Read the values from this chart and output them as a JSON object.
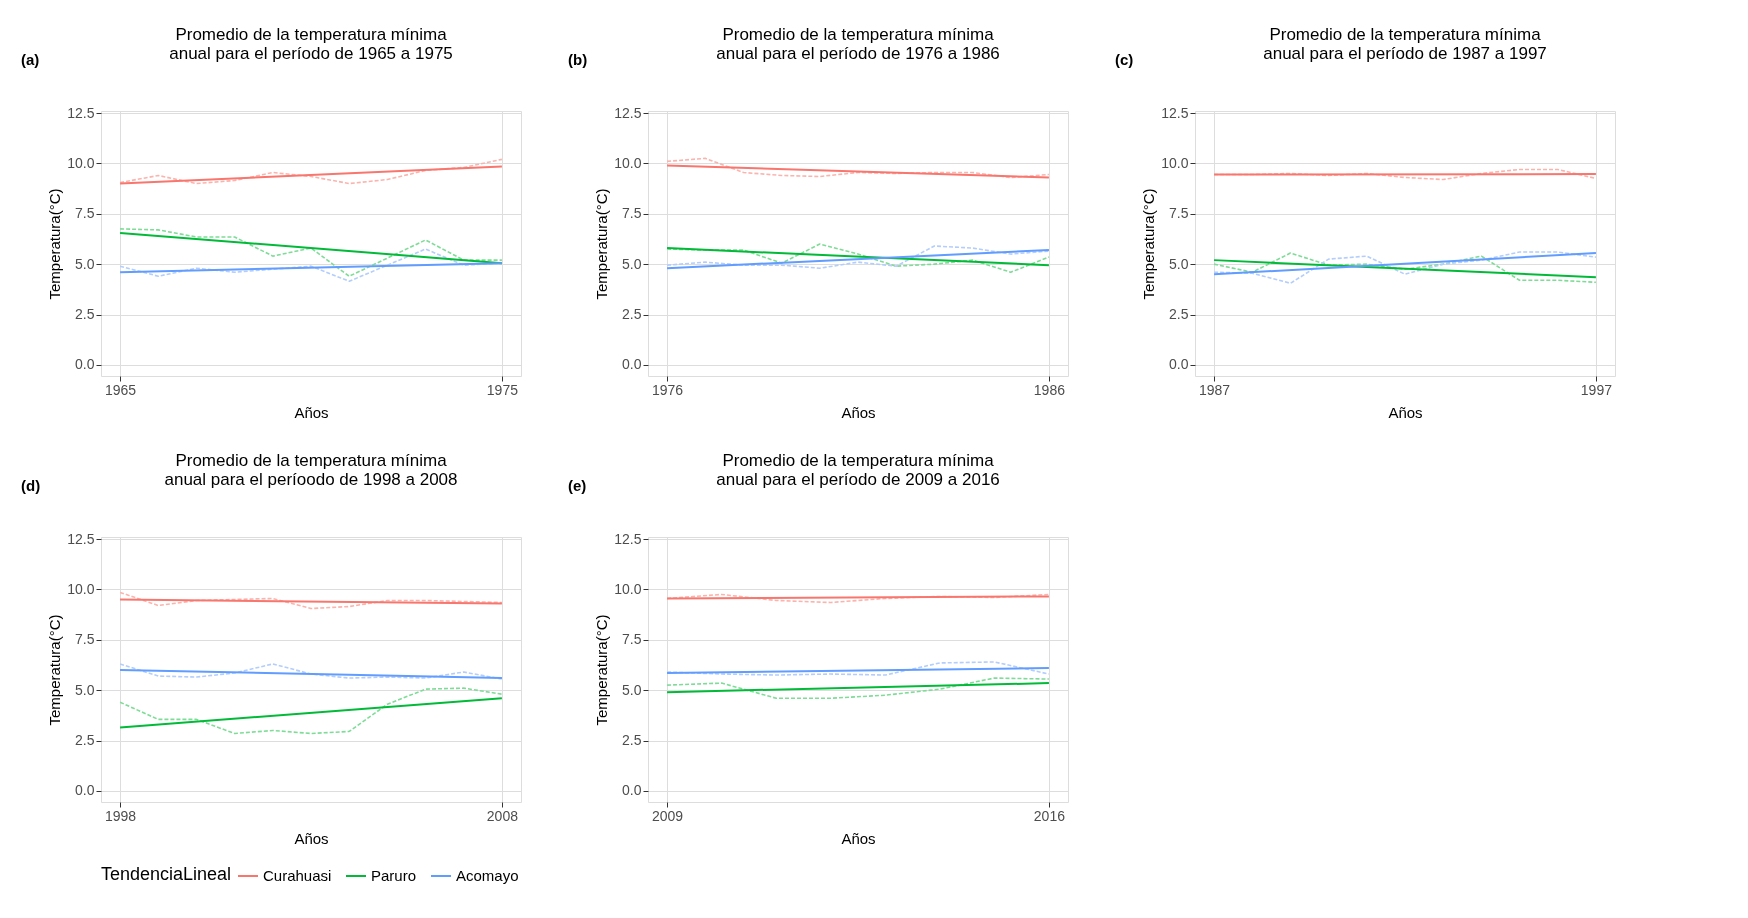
{
  "chart_data": [
    {
      "type": "line",
      "title": "Promedio de la temperatura mínima\n anual para el período de 1965 a 1975",
      "xlabel": "Años",
      "ylabel": "Temperatura(°C)",
      "annotations": [
        "(a)"
      ],
      "legend": "bottom",
      "legend_title": "TendenciaLineal",
      "grid": true,
      "xlim": [
        1964.5,
        1975.5
      ],
      "xticks": [
        1965,
        1975
      ],
      "ylim": [
        -0.55,
        12.6
      ],
      "yticks": [
        {
          "value": 0,
          "label": "0.0"
        },
        {
          "value": 2.5,
          "label": "2.5"
        },
        {
          "value": 5,
          "label": "5.0"
        },
        {
          "value": 7.5,
          "label": "7.5"
        },
        {
          "value": 10,
          "label": "10.0"
        },
        {
          "value": 12.5,
          "label": "12.5"
        }
      ],
      "x": [
        1965,
        1966,
        1967,
        1968,
        1969,
        1970,
        1971,
        1972,
        1973,
        1974,
        1975
      ],
      "series": [
        {
          "color": "#fab4ae",
          "line_style": "dashed",
          "values": [
            9.05,
            9.4,
            9.0,
            9.15,
            9.55,
            9.35,
            9.0,
            9.2,
            9.65,
            9.8,
            10.2
          ]
        },
        {
          "color": "#7fdc97",
          "line_style": "dashed",
          "values": [
            6.75,
            6.7,
            6.35,
            6.35,
            5.4,
            5.8,
            4.4,
            5.3,
            6.2,
            5.2,
            5.2
          ]
        },
        {
          "color": "#b3cdfc",
          "line_style": "dashed",
          "values": [
            4.9,
            4.4,
            4.8,
            4.6,
            4.75,
            4.9,
            4.15,
            4.95,
            5.75,
            4.95,
            5.05
          ]
        },
        {
          "name": "Curahuasi",
          "color": "#f8766d",
          "line_style": "solid",
          "x": [
            1965,
            1975
          ],
          "values": [
            9.0,
            9.85
          ]
        },
        {
          "name": "Paruro",
          "color": "#00ba38",
          "line_style": "solid",
          "x": [
            1965,
            1975
          ],
          "values": [
            6.55,
            5.05
          ]
        },
        {
          "name": "Acomayo",
          "color": "#619cff",
          "line_style": "solid",
          "x": [
            1965,
            1975
          ],
          "values": [
            4.6,
            5.05
          ]
        }
      ]
    },
    {
      "type": "line",
      "title": "Promedio de la temperatura mínima\n anual para el período de 1976 a 1986",
      "xlabel": "Años",
      "ylabel": "Temperatura(°C)",
      "annotations": [
        "(b)"
      ],
      "grid": true,
      "xlim": [
        1975.5,
        1986.5
      ],
      "xticks": [
        1976,
        1986
      ],
      "ylim": [
        -0.55,
        12.6
      ],
      "yticks": [
        {
          "value": 0,
          "label": "0.0"
        },
        {
          "value": 2.5,
          "label": "2.5"
        },
        {
          "value": 5,
          "label": "5.0"
        },
        {
          "value": 7.5,
          "label": "7.5"
        },
        {
          "value": 10,
          "label": "10.0"
        },
        {
          "value": 12.5,
          "label": "12.5"
        }
      ],
      "x": [
        1976,
        1977,
        1978,
        1979,
        1980,
        1981,
        1982,
        1983,
        1984,
        1985,
        1986
      ],
      "series": [
        {
          "color": "#fab4ae",
          "line_style": "dashed",
          "values": [
            10.1,
            10.25,
            9.55,
            9.4,
            9.35,
            9.55,
            9.5,
            9.55,
            9.55,
            9.3,
            9.45
          ]
        },
        {
          "color": "#7fdc97",
          "line_style": "dashed",
          "values": [
            5.75,
            5.7,
            5.7,
            5.05,
            6.0,
            5.5,
            4.9,
            5.0,
            5.2,
            4.6,
            5.35
          ]
        },
        {
          "color": "#b3cdfc",
          "line_style": "dashed",
          "values": [
            4.95,
            5.1,
            4.95,
            4.95,
            4.8,
            5.1,
            4.9,
            5.9,
            5.8,
            5.5,
            5.65
          ]
        },
        {
          "name": "Curahuasi",
          "color": "#f8766d",
          "line_style": "solid",
          "x": [
            1976,
            1986
          ],
          "values": [
            9.9,
            9.3
          ]
        },
        {
          "name": "Paruro",
          "color": "#00ba38",
          "line_style": "solid",
          "x": [
            1976,
            1986
          ],
          "values": [
            5.8,
            4.95
          ]
        },
        {
          "name": "Acomayo",
          "color": "#619cff",
          "line_style": "solid",
          "x": [
            1976,
            1986
          ],
          "values": [
            4.8,
            5.7
          ]
        }
      ]
    },
    {
      "type": "line",
      "title": "Promedio de la temperatura mínima\n anual para el período de 1987 a 1997",
      "xlabel": "Años",
      "ylabel": "Temperatura(°C)",
      "annotations": [
        "(c)"
      ],
      "grid": true,
      "xlim": [
        1986.5,
        1997.5
      ],
      "xticks": [
        1987,
        1997
      ],
      "ylim": [
        -0.55,
        12.6
      ],
      "yticks": [
        {
          "value": 0,
          "label": "0.0"
        },
        {
          "value": 2.5,
          "label": "2.5"
        },
        {
          "value": 5,
          "label": "5.0"
        },
        {
          "value": 7.5,
          "label": "7.5"
        },
        {
          "value": 10,
          "label": "10.0"
        },
        {
          "value": 12.5,
          "label": "12.5"
        }
      ],
      "x": [
        1987,
        1988,
        1989,
        1990,
        1991,
        1992,
        1993,
        1994,
        1995,
        1996,
        1997
      ],
      "series": [
        {
          "color": "#fab4ae",
          "line_style": "dashed",
          "values": [
            9.45,
            9.45,
            9.5,
            9.4,
            9.5,
            9.3,
            9.2,
            9.5,
            9.7,
            9.7,
            9.25
          ]
        },
        {
          "color": "#7fdc97",
          "line_style": "dashed",
          "values": [
            5.0,
            4.6,
            5.55,
            4.95,
            5.0,
            4.75,
            5.0,
            5.4,
            4.2,
            4.2,
            4.1
          ]
        },
        {
          "color": "#b3cdfc",
          "line_style": "dashed",
          "values": [
            4.6,
            4.55,
            4.05,
            5.25,
            5.4,
            4.5,
            5.0,
            5.2,
            5.6,
            5.6,
            5.35
          ]
        },
        {
          "name": "Curahuasi",
          "color": "#f8766d",
          "line_style": "solid",
          "x": [
            1987,
            1997
          ],
          "values": [
            9.45,
            9.47
          ]
        },
        {
          "name": "Paruro",
          "color": "#00ba38",
          "line_style": "solid",
          "x": [
            1987,
            1997
          ],
          "values": [
            5.2,
            4.35
          ]
        },
        {
          "name": "Acomayo",
          "color": "#619cff",
          "line_style": "solid",
          "x": [
            1987,
            1997
          ],
          "values": [
            4.5,
            5.55
          ]
        }
      ]
    },
    {
      "type": "line",
      "title": "Promedio de la temperatura mínima\n anual para el períoodo de 1998 a 2008",
      "xlabel": "Años",
      "ylabel": "Temperatura(°C)",
      "annotations": [
        "(d)"
      ],
      "grid": true,
      "xlim": [
        1997.5,
        2008.5
      ],
      "xticks": [
        1998,
        2008
      ],
      "ylim": [
        -0.55,
        12.6
      ],
      "yticks": [
        {
          "value": 0,
          "label": "0.0"
        },
        {
          "value": 2.5,
          "label": "2.5"
        },
        {
          "value": 5,
          "label": "5.0"
        },
        {
          "value": 7.5,
          "label": "7.5"
        },
        {
          "value": 10,
          "label": "10.0"
        },
        {
          "value": 12.5,
          "label": "12.5"
        }
      ],
      "x": [
        1998,
        1999,
        2000,
        2001,
        2002,
        2003,
        2004,
        2005,
        2006,
        2007,
        2008
      ],
      "series": [
        {
          "color": "#fab4ae",
          "line_style": "dashed",
          "values": [
            9.85,
            9.2,
            9.45,
            9.5,
            9.55,
            9.05,
            9.15,
            9.45,
            9.45,
            9.4,
            9.35
          ]
        },
        {
          "color": "#7fdc97",
          "line_style": "dashed",
          "values": [
            4.4,
            3.55,
            3.55,
            2.85,
            3.0,
            2.85,
            2.95,
            4.3,
            5.05,
            5.1,
            4.8
          ]
        },
        {
          "color": "#b3cdfc",
          "line_style": "dashed",
          "values": [
            6.3,
            5.7,
            5.65,
            5.85,
            6.3,
            5.8,
            5.6,
            5.65,
            5.6,
            5.9,
            5.55
          ]
        },
        {
          "name": "Curahuasi",
          "color": "#f8766d",
          "line_style": "solid",
          "x": [
            1998,
            2008
          ],
          "values": [
            9.5,
            9.3
          ]
        },
        {
          "name": "Paruro",
          "color": "#00ba38",
          "line_style": "solid",
          "x": [
            1998,
            2008
          ],
          "values": [
            3.15,
            4.6
          ]
        },
        {
          "name": "Acomayo",
          "color": "#619cff",
          "line_style": "solid",
          "x": [
            1998,
            2008
          ],
          "values": [
            6.0,
            5.6
          ]
        }
      ]
    },
    {
      "type": "line",
      "title": "Promedio de la temperatura mínima\n anual para el período de 2009 a 2016",
      "xlabel": "Años",
      "ylabel": "Temperatura(°C)",
      "annotations": [
        "(e)"
      ],
      "grid": true,
      "xlim": [
        2008.65,
        2016.35
      ],
      "xticks": [
        2009,
        2016
      ],
      "ylim": [
        -0.55,
        12.6
      ],
      "yticks": [
        {
          "value": 0,
          "label": "0.0"
        },
        {
          "value": 2.5,
          "label": "2.5"
        },
        {
          "value": 5,
          "label": "5.0"
        },
        {
          "value": 7.5,
          "label": "7.5"
        },
        {
          "value": 10,
          "label": "10.0"
        },
        {
          "value": 12.5,
          "label": "12.5"
        }
      ],
      "x": [
        2009,
        2010,
        2011,
        2012,
        2013,
        2014,
        2015,
        2016
      ],
      "series": [
        {
          "color": "#fab4ae",
          "line_style": "dashed",
          "values": [
            9.55,
            9.75,
            9.45,
            9.35,
            9.55,
            9.65,
            9.6,
            9.75
          ]
        },
        {
          "color": "#7fdc97",
          "line_style": "dashed",
          "values": [
            5.25,
            5.35,
            4.6,
            4.6,
            4.75,
            5.05,
            5.6,
            5.55
          ]
        },
        {
          "color": "#b3cdfc",
          "line_style": "dashed",
          "values": [
            5.9,
            5.8,
            5.75,
            5.8,
            5.75,
            6.35,
            6.4,
            5.8
          ]
        },
        {
          "name": "Curahuasi",
          "color": "#f8766d",
          "line_style": "solid",
          "x": [
            2009,
            2016
          ],
          "values": [
            9.55,
            9.65
          ]
        },
        {
          "name": "Paruro",
          "color": "#00ba38",
          "line_style": "solid",
          "x": [
            2009,
            2016
          ],
          "values": [
            4.9,
            5.35
          ]
        },
        {
          "name": "Acomayo",
          "color": "#619cff",
          "line_style": "solid",
          "x": [
            2009,
            2016
          ],
          "values": [
            5.85,
            6.1
          ]
        }
      ]
    }
  ]
}
